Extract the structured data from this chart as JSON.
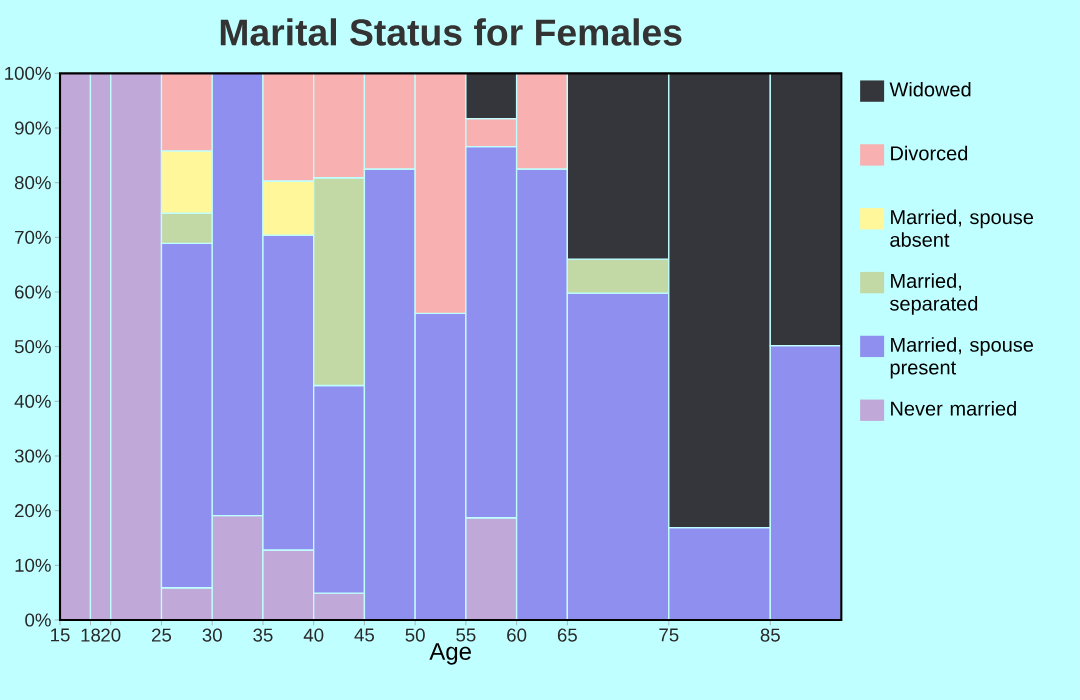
{
  "chart_data": {
    "type": "bar",
    "stacked": true,
    "title": "Marital Status for Females",
    "xlabel": "Age",
    "x": [
      16.5,
      19,
      22.5,
      27.5,
      32.5,
      37.5,
      42.5,
      47.5,
      52.5,
      57.5,
      62.5,
      70,
      80,
      88.5
    ],
    "xlim": [
      15,
      92
    ],
    "xticks": [
      15,
      18,
      20,
      25,
      30,
      35,
      40,
      45,
      50,
      55,
      60,
      65,
      75,
      85
    ],
    "ylim": [
      0,
      100
    ],
    "yticks": [
      {
        "value": 0,
        "label": "0%"
      },
      {
        "value": 10,
        "label": "10%"
      },
      {
        "value": 20,
        "label": "20%"
      },
      {
        "value": 30,
        "label": "30%"
      },
      {
        "value": 40,
        "label": "40%"
      },
      {
        "value": 50,
        "label": "50%"
      },
      {
        "value": 60,
        "label": "60%"
      },
      {
        "value": 70,
        "label": "70%"
      },
      {
        "value": 80,
        "label": "80%"
      },
      {
        "value": 90,
        "label": "90%"
      },
      {
        "value": 100,
        "label": "100%"
      }
    ],
    "legend": "right",
    "series": [
      {
        "name": "Never married",
        "color": "#c0a8d8",
        "values": [
          100,
          100,
          100,
          5.9,
          19.1,
          12.8,
          4.9,
          0,
          0,
          18.7,
          0,
          0,
          0,
          0
        ]
      },
      {
        "name": "Married, spouse present",
        "color": "#8f8ff0",
        "values": [
          0,
          0,
          0,
          63,
          80.9,
          57.6,
          38,
          82.5,
          56.1,
          67.9,
          82.5,
          59.8,
          16.9,
          50.2
        ]
      },
      {
        "name": "Married, separated",
        "color": "#c2d9a6",
        "values": [
          0,
          0,
          0,
          5.5,
          0,
          0,
          38,
          0,
          0,
          0,
          0,
          6.2,
          0,
          0
        ]
      },
      {
        "name": "Married, spouse absent",
        "color": "#fff799",
        "values": [
          0,
          0,
          0,
          11.4,
          0,
          9.9,
          0,
          0,
          0,
          0,
          0,
          0,
          0,
          0
        ]
      },
      {
        "name": "Divorced",
        "color": "#f8b0b0",
        "values": [
          0,
          0,
          0,
          14.2,
          0,
          19.7,
          19.1,
          17.5,
          43.9,
          5.1,
          17.5,
          0,
          0,
          0
        ]
      },
      {
        "name": "Widowed",
        "color": "#35363b",
        "values": [
          0,
          0,
          0,
          0,
          0,
          0,
          0,
          0,
          0,
          8.3,
          0,
          34,
          83.1,
          49.8
        ]
      }
    ]
  }
}
